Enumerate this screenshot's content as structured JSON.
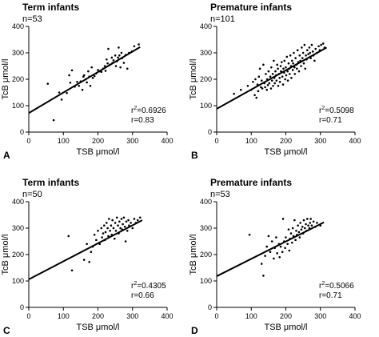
{
  "chart_data": [
    {
      "type": "scatter",
      "panel_label": "A",
      "title": "Term infants",
      "subtitle": "n=53",
      "xlabel": "TSB μmol/l",
      "ylabel": "TcB μmol/l",
      "xlim": [
        0,
        400
      ],
      "ylim": [
        0,
        400
      ],
      "xticks": [
        0,
        100,
        200,
        300,
        400
      ],
      "yticks": [
        0,
        100,
        200,
        300,
        400
      ],
      "stat_r2": "0.6926",
      "stat_r": "r=0.83",
      "fit_line": [
        [
          0,
          72
        ],
        [
          322,
          322
        ]
      ],
      "points": [
        [
          55,
          183
        ],
        [
          72,
          45
        ],
        [
          88,
          150
        ],
        [
          95,
          123
        ],
        [
          110,
          148
        ],
        [
          117,
          215
        ],
        [
          120,
          187
        ],
        [
          125,
          234
        ],
        [
          133,
          172
        ],
        [
          140,
          190
        ],
        [
          145,
          175
        ],
        [
          150,
          192
        ],
        [
          155,
          160
        ],
        [
          158,
          210
        ],
        [
          160,
          215
        ],
        [
          165,
          200
        ],
        [
          168,
          188
        ],
        [
          172,
          230
        ],
        [
          175,
          210
        ],
        [
          178,
          175
        ],
        [
          182,
          245
        ],
        [
          185,
          205
        ],
        [
          190,
          212
        ],
        [
          195,
          222
        ],
        [
          200,
          235
        ],
        [
          205,
          230
        ],
        [
          210,
          228
        ],
        [
          215,
          240
        ],
        [
          220,
          250
        ],
        [
          222,
          232
        ],
        [
          225,
          275
        ],
        [
          228,
          260
        ],
        [
          230,
          315
        ],
        [
          235,
          255
        ],
        [
          240,
          282
        ],
        [
          242,
          262
        ],
        [
          245,
          272
        ],
        [
          250,
          290
        ],
        [
          252,
          250
        ],
        [
          255,
          268
        ],
        [
          258,
          282
        ],
        [
          260,
          320
        ],
        [
          262,
          290
        ],
        [
          265,
          245
        ],
        [
          268,
          300
        ],
        [
          270,
          280
        ],
        [
          275,
          262
        ],
        [
          280,
          292
        ],
        [
          285,
          240
        ],
        [
          290,
          300
        ],
        [
          298,
          305
        ],
        [
          305,
          325
        ],
        [
          318,
          332
        ]
      ]
    },
    {
      "type": "scatter",
      "panel_label": "B",
      "title": "Premature infants",
      "subtitle": "n=101",
      "xlabel": "TSB μmol/l",
      "ylabel": "TcB μmol/l",
      "xlim": [
        0,
        400
      ],
      "ylim": [
        0,
        400
      ],
      "xticks": [
        0,
        100,
        200,
        300,
        400
      ],
      "yticks": [
        0,
        100,
        200,
        300,
        400
      ],
      "stat_r2": "0.5098",
      "stat_r": "r=0.71",
      "fit_line": [
        [
          0,
          88
        ],
        [
          318,
          320
        ]
      ],
      "points": [
        [
          50,
          145
        ],
        [
          70,
          160
        ],
        [
          90,
          175
        ],
        [
          100,
          160
        ],
        [
          105,
          190
        ],
        [
          110,
          140
        ],
        [
          112,
          200
        ],
        [
          115,
          130
        ],
        [
          118,
          180
        ],
        [
          120,
          155
        ],
        [
          122,
          210
        ],
        [
          125,
          240
        ],
        [
          128,
          170
        ],
        [
          130,
          195
        ],
        [
          132,
          165
        ],
        [
          135,
          255
        ],
        [
          138,
          185
        ],
        [
          140,
          170
        ],
        [
          142,
          220
        ],
        [
          145,
          160
        ],
        [
          146,
          200
        ],
        [
          148,
          178
        ],
        [
          150,
          230
        ],
        [
          152,
          185
        ],
        [
          155,
          210
        ],
        [
          157,
          165
        ],
        [
          158,
          245
        ],
        [
          160,
          195
        ],
        [
          162,
          220
        ],
        [
          163,
          175
        ],
        [
          165,
          270
        ],
        [
          167,
          205
        ],
        [
          168,
          185
        ],
        [
          170,
          230
        ],
        [
          172,
          215
        ],
        [
          173,
          195
        ],
        [
          175,
          255
        ],
        [
          177,
          240
        ],
        [
          178,
          175
        ],
        [
          180,
          220
        ],
        [
          182,
          205
        ],
        [
          183,
          190
        ],
        [
          185,
          250
        ],
        [
          186,
          230
        ],
        [
          188,
          265
        ],
        [
          190,
          210
        ],
        [
          192,
          180
        ],
        [
          193,
          240
        ],
        [
          195,
          225
        ],
        [
          196,
          270
        ],
        [
          198,
          200
        ],
        [
          200,
          245
        ],
        [
          201,
          215
        ],
        [
          203,
          285
        ],
        [
          205,
          230
        ],
        [
          206,
          195
        ],
        [
          208,
          260
        ],
        [
          210,
          240
        ],
        [
          211,
          220
        ],
        [
          213,
          290
        ],
        [
          215,
          250
        ],
        [
          216,
          205
        ],
        [
          218,
          270
        ],
        [
          220,
          235
        ],
        [
          221,
          260
        ],
        [
          223,
          300
        ],
        [
          225,
          245
        ],
        [
          226,
          220
        ],
        [
          228,
          280
        ],
        [
          230,
          255
        ],
        [
          232,
          240
        ],
        [
          234,
          310
        ],
        [
          236,
          265
        ],
        [
          238,
          230
        ],
        [
          240,
          290
        ],
        [
          242,
          270
        ],
        [
          244,
          250
        ],
        [
          246,
          320
        ],
        [
          248,
          280
        ],
        [
          250,
          300
        ],
        [
          252,
          260
        ],
        [
          254,
          330
        ],
        [
          256,
          240
        ],
        [
          258,
          290
        ],
        [
          260,
          275
        ],
        [
          262,
          310
        ],
        [
          265,
          295
        ],
        [
          268,
          320
        ],
        [
          270,
          300
        ],
        [
          272,
          280
        ],
        [
          275,
          330
        ],
        [
          278,
          305
        ],
        [
          280,
          290
        ],
        [
          283,
          270
        ],
        [
          286,
          315
        ],
        [
          290,
          300
        ],
        [
          295,
          325
        ],
        [
          298,
          310
        ],
        [
          302,
          330
        ],
        [
          308,
          335
        ],
        [
          312,
          320
        ]
      ]
    },
    {
      "type": "scatter",
      "panel_label": "C",
      "title": "Term infants",
      "subtitle": "n=50",
      "xlabel": "TSB μmol/l",
      "ylabel": "TcB μmol/l",
      "xlim": [
        0,
        400
      ],
      "ylim": [
        0,
        400
      ],
      "xticks": [
        0,
        100,
        200,
        300,
        400
      ],
      "yticks": [
        0,
        100,
        200,
        300,
        400
      ],
      "stat_r2": "0.4305",
      "stat_r": "r=0.66",
      "fit_line": [
        [
          0,
          106
        ],
        [
          328,
          330
        ]
      ],
      "points": [
        [
          115,
          270
        ],
        [
          125,
          140
        ],
        [
          160,
          180
        ],
        [
          168,
          240
        ],
        [
          175,
          172
        ],
        [
          180,
          210
        ],
        [
          185,
          230
        ],
        [
          190,
          275
        ],
        [
          195,
          255
        ],
        [
          200,
          290
        ],
        [
          205,
          240
        ],
        [
          210,
          300
        ],
        [
          212,
          265
        ],
        [
          215,
          280
        ],
        [
          218,
          310
        ],
        [
          220,
          255
        ],
        [
          222,
          285
        ],
        [
          225,
          320
        ],
        [
          228,
          300
        ],
        [
          230,
          270
        ],
        [
          232,
          335
        ],
        [
          235,
          290
        ],
        [
          238,
          310
        ],
        [
          240,
          275
        ],
        [
          242,
          330
        ],
        [
          245,
          300
        ],
        [
          248,
          260
        ],
        [
          250,
          320
        ],
        [
          252,
          290
        ],
        [
          255,
          340
        ],
        [
          258,
          310
        ],
        [
          260,
          280
        ],
        [
          262,
          325
        ],
        [
          265,
          300
        ],
        [
          268,
          335
        ],
        [
          270,
          295
        ],
        [
          272,
          315
        ],
        [
          275,
          340
        ],
        [
          278,
          305
        ],
        [
          280,
          250
        ],
        [
          282,
          325
        ],
        [
          285,
          290
        ],
        [
          288,
          330
        ],
        [
          290,
          310
        ],
        [
          295,
          320
        ],
        [
          300,
          300
        ],
        [
          305,
          335
        ],
        [
          310,
          320
        ],
        [
          315,
          330
        ],
        [
          322,
          340
        ]
      ]
    },
    {
      "type": "scatter",
      "panel_label": "D",
      "title": "Premature infants",
      "subtitle": "n=53",
      "xlabel": "TSB μmol/l",
      "ylabel": "TcB μmol/l",
      "xlim": [
        0,
        400
      ],
      "ylim": [
        0,
        400
      ],
      "xticks": [
        0,
        100,
        200,
        300,
        400
      ],
      "yticks": [
        0,
        100,
        200,
        300,
        400
      ],
      "stat_r2": "0.5066",
      "stat_r": "r=0.71",
      "fit_line": [
        [
          0,
          118
        ],
        [
          310,
          322
        ]
      ],
      "points": [
        [
          95,
          275
        ],
        [
          130,
          165
        ],
        [
          135,
          120
        ],
        [
          140,
          195
        ],
        [
          145,
          230
        ],
        [
          150,
          270
        ],
        [
          155,
          210
        ],
        [
          160,
          250
        ],
        [
          165,
          185
        ],
        [
          168,
          225
        ],
        [
          172,
          265
        ],
        [
          175,
          205
        ],
        [
          180,
          240
        ],
        [
          182,
          190
        ],
        [
          185,
          230
        ],
        [
          190,
          210
        ],
        [
          192,
          335
        ],
        [
          195,
          250
        ],
        [
          198,
          225
        ],
        [
          200,
          265
        ],
        [
          205,
          240
        ],
        [
          208,
          295
        ],
        [
          210,
          215
        ],
        [
          212,
          260
        ],
        [
          215,
          280
        ],
        [
          218,
          245
        ],
        [
          220,
          300
        ],
        [
          222,
          270
        ],
        [
          225,
          330
        ],
        [
          228,
          255
        ],
        [
          230,
          290
        ],
        [
          232,
          275
        ],
        [
          235,
          310
        ],
        [
          238,
          285
        ],
        [
          240,
          265
        ],
        [
          242,
          320
        ],
        [
          245,
          295
        ],
        [
          248,
          305
        ],
        [
          250,
          280
        ],
        [
          252,
          330
        ],
        [
          255,
          300
        ],
        [
          258,
          315
        ],
        [
          260,
          290
        ],
        [
          262,
          335
        ],
        [
          265,
          310
        ],
        [
          268,
          300
        ],
        [
          270,
          320
        ],
        [
          272,
          335
        ],
        [
          275,
          310
        ],
        [
          280,
          325
        ],
        [
          285,
          305
        ],
        [
          290,
          320
        ],
        [
          300,
          310
        ]
      ]
    }
  ]
}
